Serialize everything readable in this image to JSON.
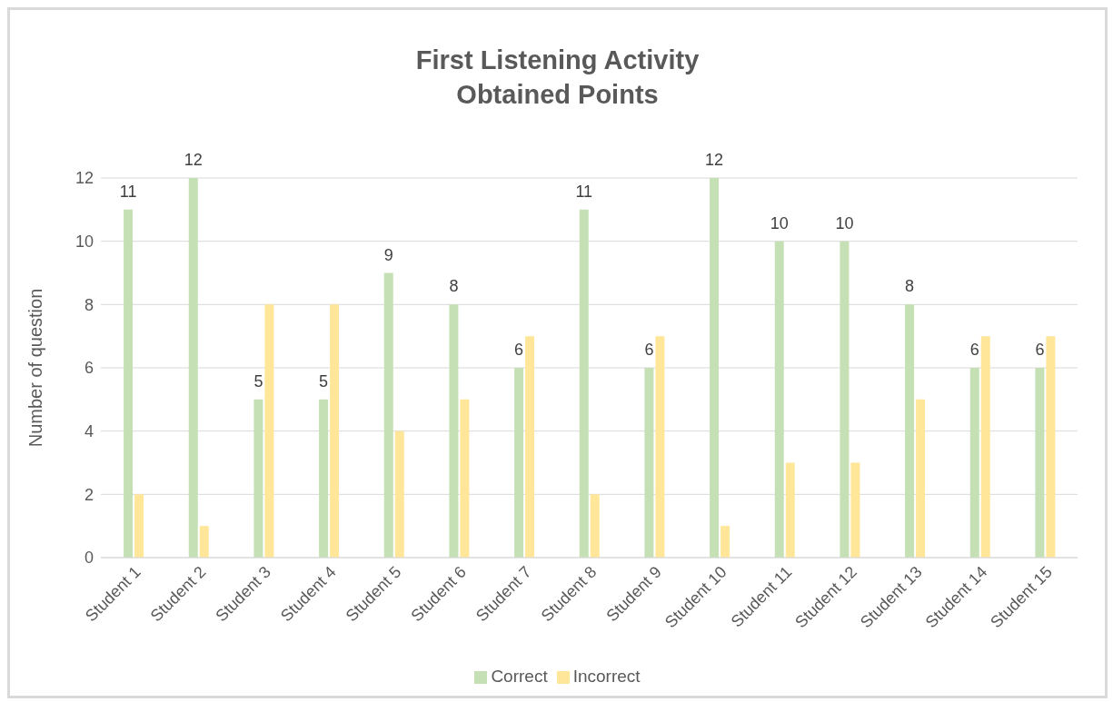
{
  "chart_data": {
    "type": "bar",
    "title": "First Listening Activity\nObtained Points",
    "ylabel": "Number of question",
    "categories": [
      "Student 1",
      "Student 2",
      "Student 3",
      "Student 4",
      "Student 5",
      "Student 6",
      "Student 7",
      "Student 8",
      "Student 9",
      "Student 10",
      "Student 11",
      "Student 12",
      "Student 13",
      "Student 14",
      "Student 15"
    ],
    "series": [
      {
        "name": "Correct",
        "color": "#c5e0b4",
        "values": [
          11,
          12,
          5,
          5,
          9,
          8,
          6,
          11,
          6,
          12,
          10,
          10,
          8,
          6,
          6
        ],
        "value_labels": [
          "11",
          "12",
          "5",
          "5",
          "9",
          "8",
          "6",
          "11",
          "6",
          "12",
          "10",
          "10",
          "8",
          "6",
          "6"
        ]
      },
      {
        "name": "Incorrect",
        "color": "#ffe699",
        "values": [
          2,
          1,
          8,
          8,
          4,
          5,
          7,
          2,
          7,
          1,
          3,
          3,
          5,
          7,
          7
        ]
      }
    ],
    "ylim": [
      0,
      12
    ],
    "yticks": [
      0,
      2,
      4,
      6,
      8,
      10,
      12
    ],
    "grid": "y",
    "legend": "bottom"
  }
}
